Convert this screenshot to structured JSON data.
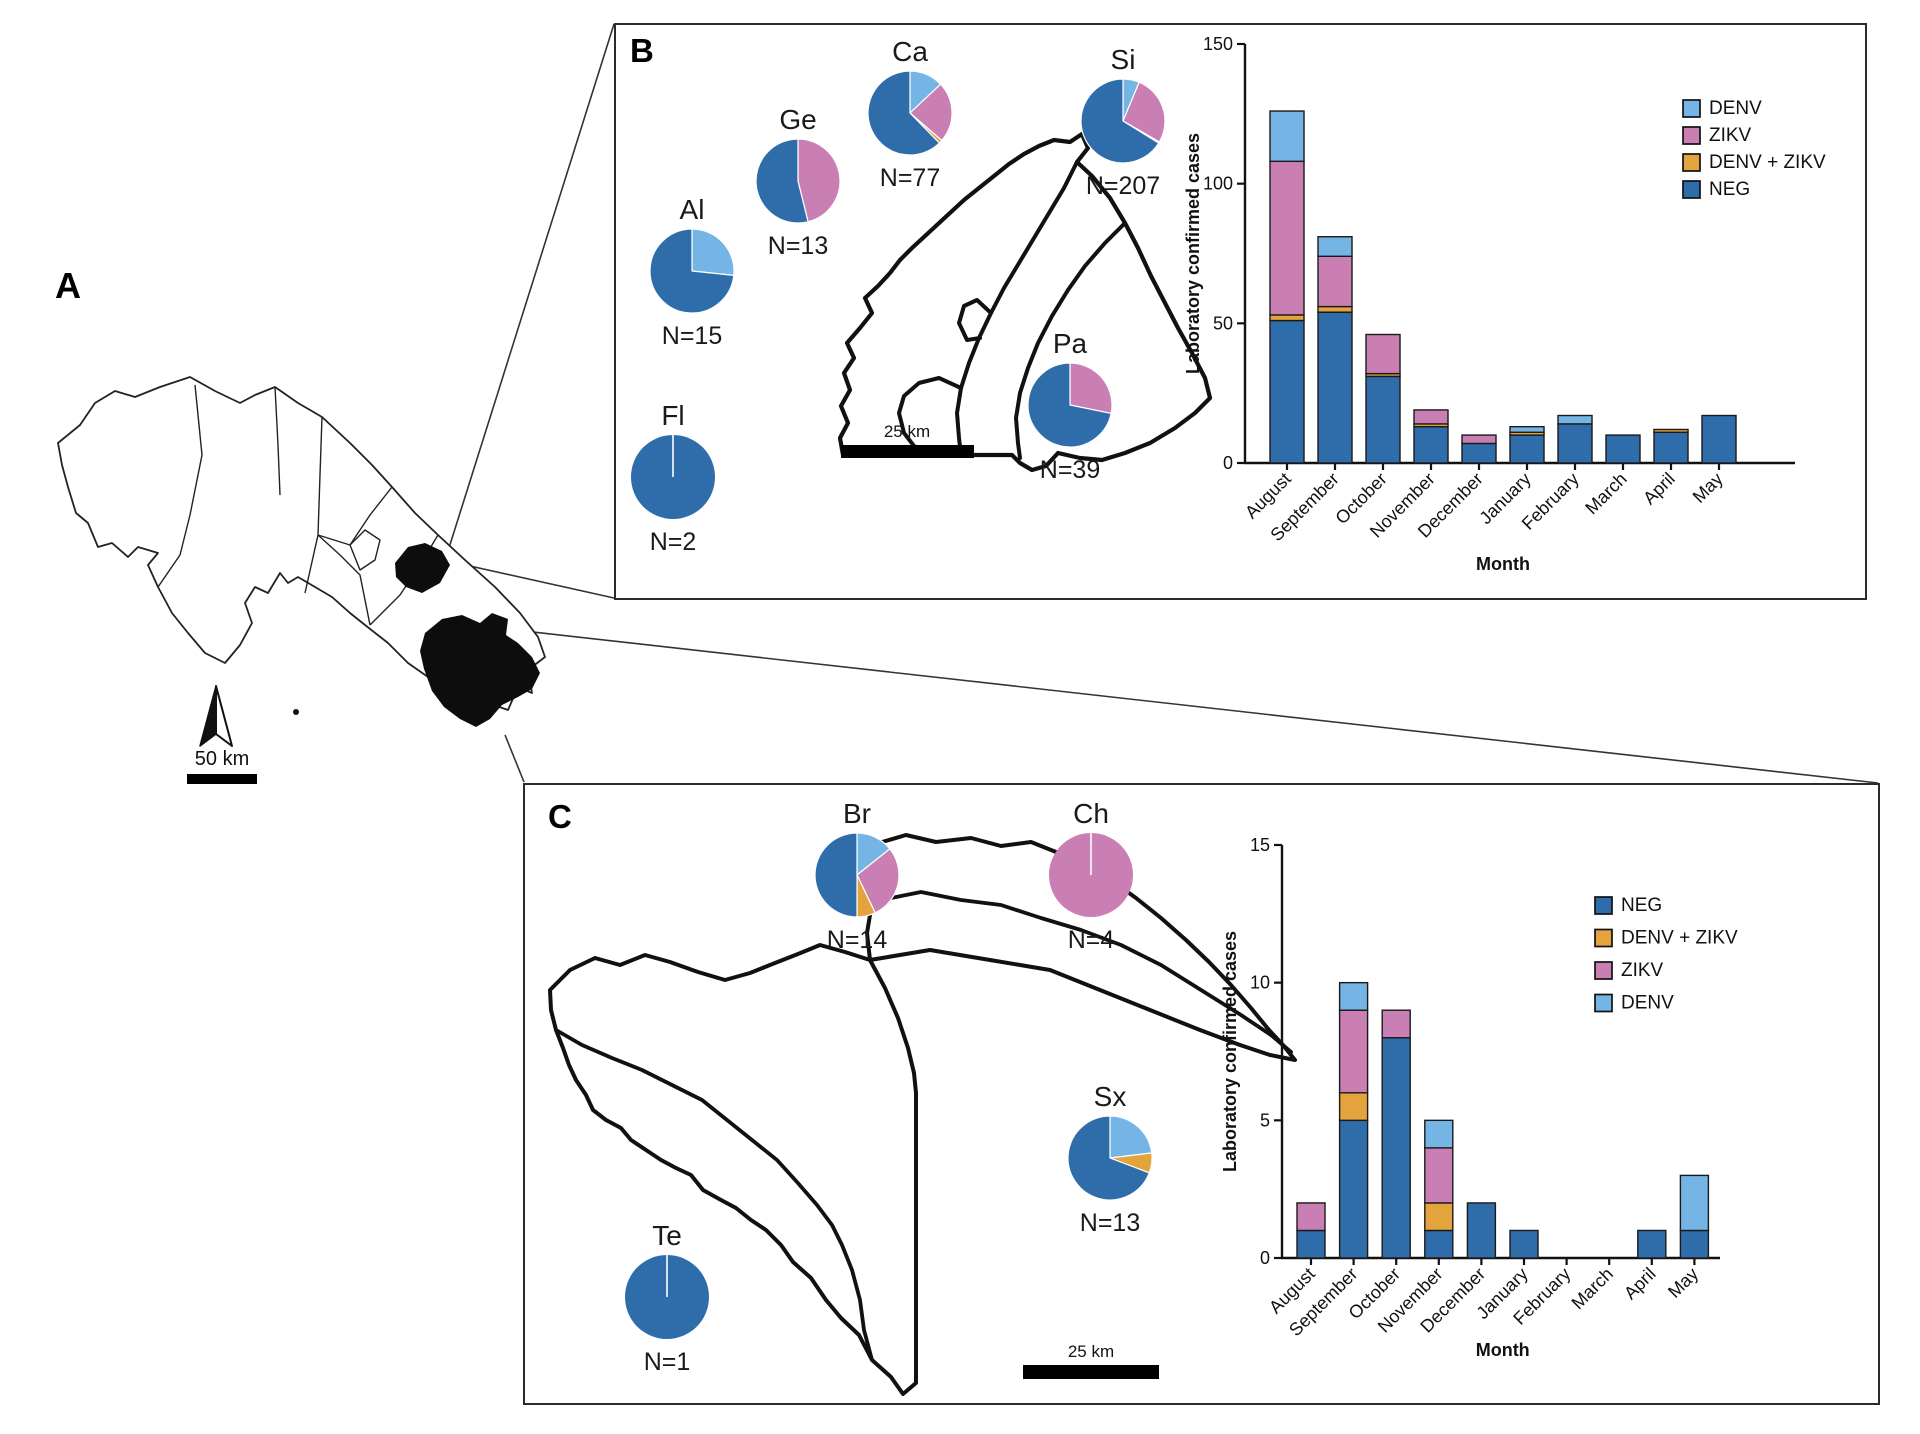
{
  "colors": {
    "NEG": "#2E6DA9",
    "DENV": "#74B5E6",
    "ZIKV": "#C97FB4",
    "DENV + ZIKV": "#E3A33D"
  },
  "panels": {
    "a": {
      "label": "A",
      "scale_text": "50 km"
    },
    "b": {
      "label": "B",
      "scale_text": "25 km"
    },
    "c": {
      "label": "C",
      "scale_text": "25 km"
    }
  },
  "chart_data": [
    {
      "id": "bars-b",
      "type": "bar",
      "stacked": true,
      "title": "",
      "xlabel": "Month",
      "ylabel": "Laboratory confirmed cases",
      "ylim": [
        0,
        150
      ],
      "yticks": [
        0,
        50,
        100,
        150
      ],
      "grid": false,
      "legend_position": "upper right",
      "categories": [
        "August",
        "September",
        "October",
        "November",
        "December",
        "January",
        "February",
        "March",
        "April",
        "May"
      ],
      "series": [
        {
          "name": "NEG",
          "values": [
            51,
            54,
            31,
            13,
            7,
            10,
            14,
            10,
            11,
            17
          ]
        },
        {
          "name": "DENV + ZIKV",
          "values": [
            2,
            2,
            1,
            1,
            0,
            1,
            0,
            0,
            1,
            0
          ]
        },
        {
          "name": "ZIKV",
          "values": [
            55,
            18,
            14,
            5,
            3,
            0,
            0,
            0,
            0,
            0
          ]
        },
        {
          "name": "DENV",
          "values": [
            18,
            7,
            0,
            0,
            0,
            2,
            3,
            0,
            0,
            0
          ]
        }
      ],
      "legend_order": [
        "DENV",
        "ZIKV",
        "DENV + ZIKV",
        "NEG"
      ]
    },
    {
      "id": "bars-c",
      "type": "bar",
      "stacked": true,
      "title": "",
      "xlabel": "Month",
      "ylabel": "Laboratory confirmed cases",
      "ylim": [
        0,
        15
      ],
      "yticks": [
        0,
        5,
        10,
        15
      ],
      "grid": false,
      "legend_position": "upper right",
      "categories": [
        "August",
        "September",
        "October",
        "November",
        "December",
        "January",
        "February",
        "March",
        "April",
        "May"
      ],
      "series": [
        {
          "name": "NEG",
          "values": [
            1,
            5,
            8,
            1,
            2,
            1,
            0,
            0,
            1,
            1
          ]
        },
        {
          "name": "DENV + ZIKV",
          "values": [
            0,
            1,
            0,
            1,
            0,
            0,
            0,
            0,
            0,
            0
          ]
        },
        {
          "name": "ZIKV",
          "values": [
            1,
            3,
            1,
            2,
            0,
            0,
            0,
            0,
            0,
            0
          ]
        },
        {
          "name": "DENV",
          "values": [
            0,
            1,
            0,
            1,
            0,
            0,
            0,
            0,
            0,
            2
          ]
        }
      ],
      "legend_order": [
        "NEG",
        "DENV + ZIKV",
        "ZIKV",
        "DENV"
      ]
    },
    {
      "id": "pies-b",
      "type": "pie",
      "pies": [
        {
          "name": "Ca",
          "n": 77,
          "n_label": "N=77",
          "slices": [
            [
              "DENV",
              10
            ],
            [
              "ZIKV",
              18
            ],
            [
              "DENV + ZIKV",
              1
            ],
            [
              "NEG",
              48
            ]
          ]
        },
        {
          "name": "Ge",
          "n": 13,
          "n_label": "N=13",
          "slices": [
            [
              "ZIKV",
              6
            ],
            [
              "NEG",
              7
            ]
          ]
        },
        {
          "name": "Al",
          "n": 15,
          "n_label": "N=15",
          "slices": [
            [
              "DENV",
              4
            ],
            [
              "NEG",
              11
            ]
          ]
        },
        {
          "name": "Fl",
          "n": 2,
          "n_label": "N=2",
          "slices": [
            [
              "NEG",
              2
            ]
          ]
        },
        {
          "name": "Si",
          "n": 207,
          "n_label": "N=207",
          "slices": [
            [
              "DENV",
              13
            ],
            [
              "ZIKV",
              56
            ],
            [
              "DENV + ZIKV",
              1
            ],
            [
              "NEG",
              137
            ]
          ]
        },
        {
          "name": "Pa",
          "n": 39,
          "n_label": "N=39",
          "slices": [
            [
              "ZIKV",
              11
            ],
            [
              "NEG",
              28
            ]
          ]
        }
      ]
    },
    {
      "id": "pies-c",
      "type": "pie",
      "pies": [
        {
          "name": "Br",
          "n": 14,
          "n_label": "N=14",
          "slices": [
            [
              "DENV",
              2
            ],
            [
              "ZIKV",
              4
            ],
            [
              "DENV + ZIKV",
              1
            ],
            [
              "NEG",
              7
            ]
          ]
        },
        {
          "name": "Ch",
          "n": 4,
          "n_label": "N=4",
          "slices": [
            [
              "ZIKV",
              4
            ]
          ]
        },
        {
          "name": "Te",
          "n": 1,
          "n_label": "N=1",
          "slices": [
            [
              "NEG",
              1
            ]
          ]
        },
        {
          "name": "Sx",
          "n": 13,
          "n_label": "N=13",
          "slices": [
            [
              "DENV",
              3
            ],
            [
              "DENV + ZIKV",
              1
            ],
            [
              "NEG",
              9
            ]
          ]
        }
      ]
    }
  ]
}
